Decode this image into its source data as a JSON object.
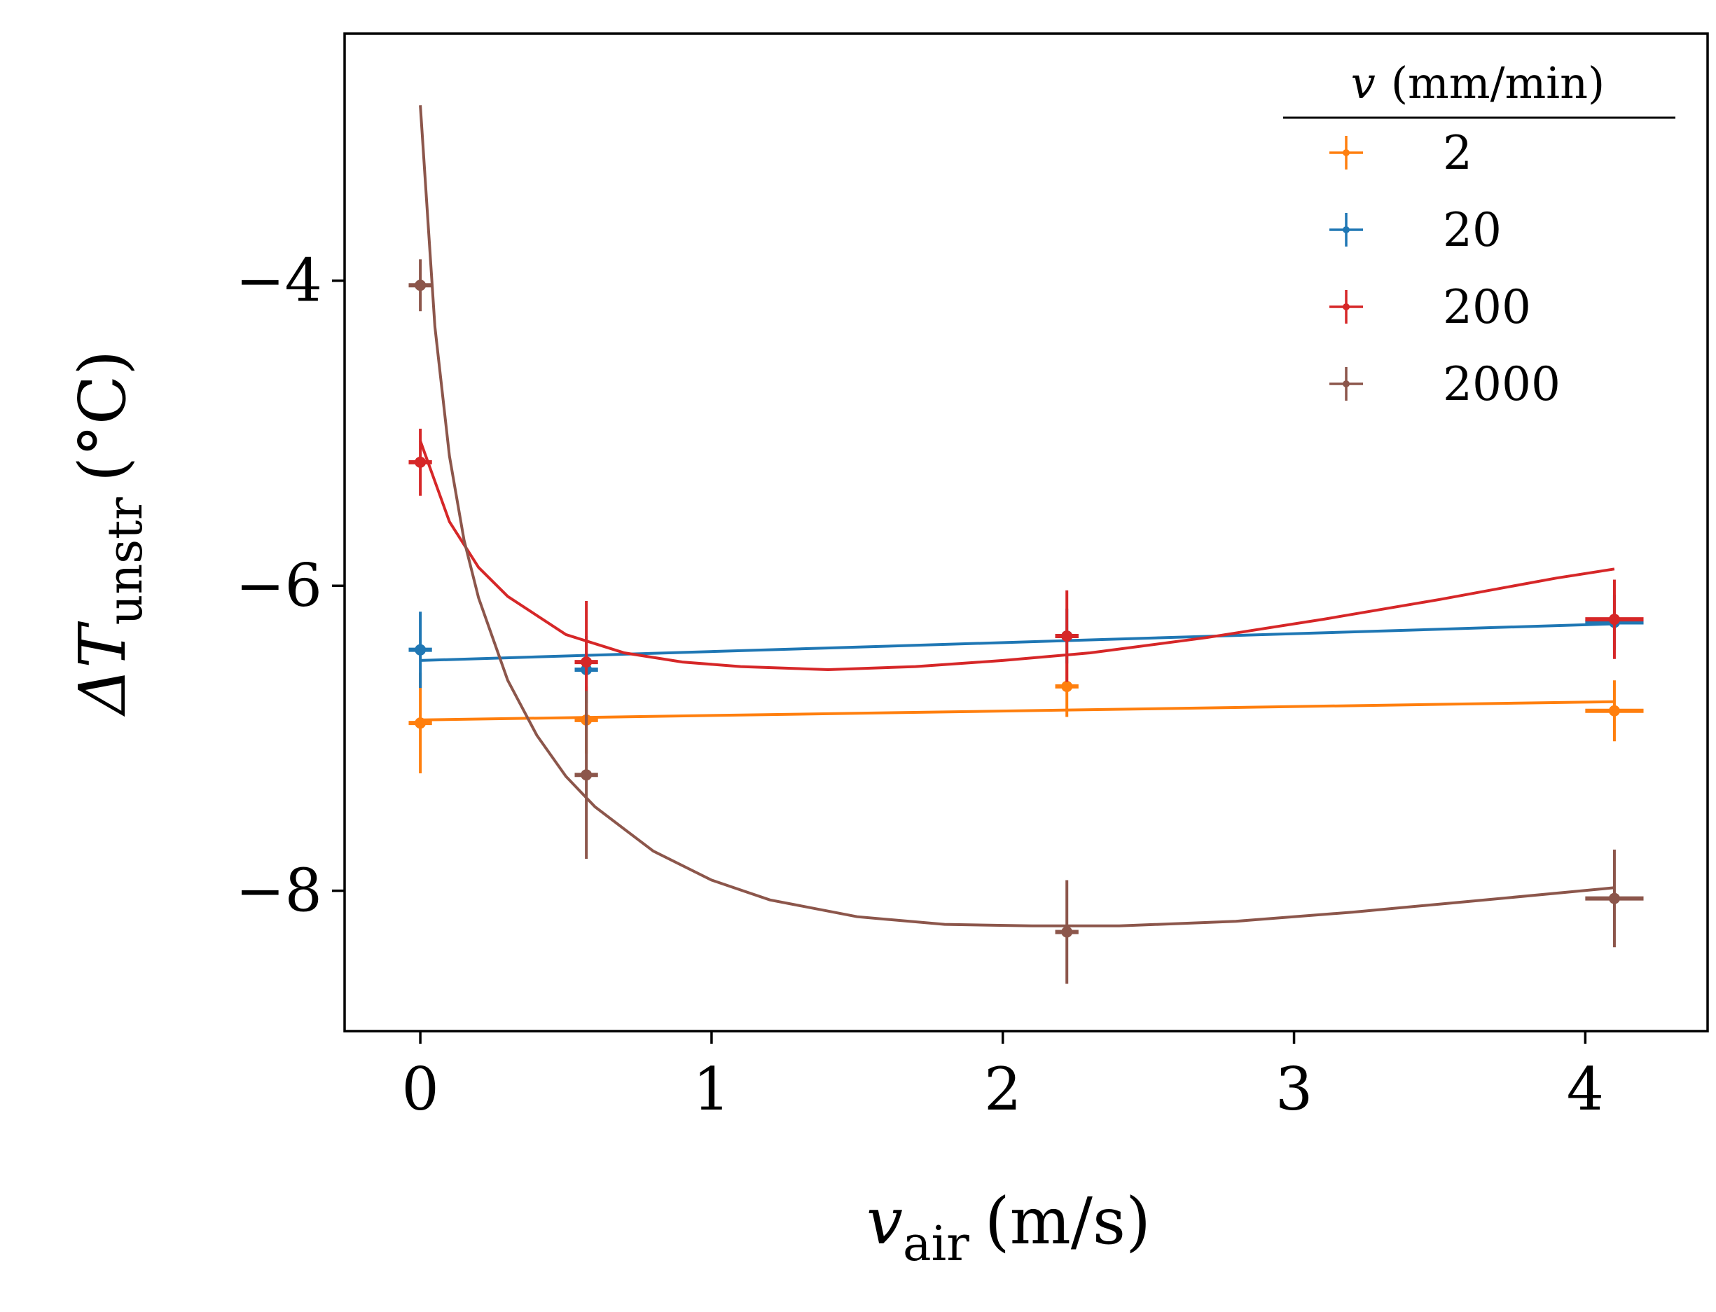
{
  "chart_data": {
    "type": "scatter",
    "xlabel": {
      "main": "v",
      "sub": "air",
      "unit": "(m/s)"
    },
    "ylabel": {
      "main": "ΔT",
      "sub": "unstr",
      "unit": "(°C)"
    },
    "xlim": [
      -0.26,
      4.42
    ],
    "ylim": [
      -8.92,
      -2.38
    ],
    "xticks": [
      0,
      1,
      2,
      3,
      4
    ],
    "yticks": [
      -8,
      -6,
      -4
    ],
    "xtick_labels": [
      "0",
      "1",
      "2",
      "3",
      "4"
    ],
    "ytick_labels": [
      "−8",
      "−6",
      "−4"
    ],
    "legend": {
      "title_var": "v",
      "title_unit": "(mm/min)",
      "position": "top-right"
    },
    "series": [
      {
        "name": "2",
        "color": "#ff7f0e",
        "points": [
          {
            "x": 0.0,
            "y": -6.9,
            "xerr": 0.04,
            "yerr": 0.33
          },
          {
            "x": 0.57,
            "y": -6.88,
            "xerr": 0.04,
            "yerr": 0.22
          },
          {
            "x": 2.22,
            "y": -6.66,
            "xerr": 0.04,
            "yerr": 0.2
          },
          {
            "x": 4.1,
            "y": -6.82,
            "xerr": 0.1,
            "yerr": 0.2
          }
        ],
        "fit": {
          "x": [
            0.0,
            4.1
          ],
          "y": [
            -6.88,
            -6.76
          ]
        }
      },
      {
        "name": "20",
        "color": "#1f77b4",
        "points": [
          {
            "x": 0.0,
            "y": -6.42,
            "xerr": 0.04,
            "yerr": 0.25
          },
          {
            "x": 0.57,
            "y": -6.55,
            "xerr": 0.04,
            "yerr": 0.22
          },
          {
            "x": 2.22,
            "y": -6.33,
            "xerr": 0.04,
            "yerr": 0.18
          },
          {
            "x": 4.1,
            "y": -6.24,
            "xerr": 0.1,
            "yerr": 0.18
          }
        ],
        "fit": {
          "x": [
            0.0,
            4.1
          ],
          "y": [
            -6.49,
            -6.25
          ]
        }
      },
      {
        "name": "200",
        "color": "#d62728",
        "points": [
          {
            "x": 0.0,
            "y": -5.19,
            "xerr": 0.04,
            "yerr": 0.22
          },
          {
            "x": 0.57,
            "y": -6.5,
            "xerr": 0.04,
            "yerr": 0.4
          },
          {
            "x": 2.22,
            "y": -6.33,
            "xerr": 0.04,
            "yerr": 0.3
          },
          {
            "x": 4.1,
            "y": -6.22,
            "xerr": 0.1,
            "yerr": 0.26
          }
        ],
        "fit": {
          "x": [
            0.0,
            0.1,
            0.2,
            0.3,
            0.5,
            0.7,
            0.9,
            1.1,
            1.4,
            1.7,
            2.0,
            2.3,
            2.7,
            3.1,
            3.5,
            3.9,
            4.1
          ],
          "y": [
            -5.05,
            -5.58,
            -5.88,
            -6.07,
            -6.32,
            -6.44,
            -6.5,
            -6.53,
            -6.55,
            -6.53,
            -6.49,
            -6.44,
            -6.34,
            -6.22,
            -6.09,
            -5.95,
            -5.89
          ]
        }
      },
      {
        "name": "2000",
        "color": "#8c564b",
        "points": [
          {
            "x": 0.0,
            "y": -4.03,
            "xerr": 0.04,
            "yerr": 0.17
          },
          {
            "x": 0.57,
            "y": -7.24,
            "xerr": 0.04,
            "yerr": 0.55
          },
          {
            "x": 2.22,
            "y": -8.27,
            "xerr": 0.04,
            "yerr": 0.34
          },
          {
            "x": 4.1,
            "y": -8.05,
            "xerr": 0.1,
            "yerr": 0.32
          }
        ],
        "fit": {
          "x": [
            0.0,
            0.05,
            0.1,
            0.15,
            0.2,
            0.3,
            0.4,
            0.5,
            0.6,
            0.8,
            1.0,
            1.2,
            1.5,
            1.8,
            2.1,
            2.4,
            2.8,
            3.2,
            3.6,
            4.1
          ],
          "y": [
            -2.85,
            -4.3,
            -5.15,
            -5.7,
            -6.08,
            -6.62,
            -6.98,
            -7.25,
            -7.45,
            -7.74,
            -7.93,
            -8.06,
            -8.17,
            -8.22,
            -8.23,
            -8.23,
            -8.2,
            -8.14,
            -8.07,
            -7.98
          ]
        }
      }
    ]
  }
}
